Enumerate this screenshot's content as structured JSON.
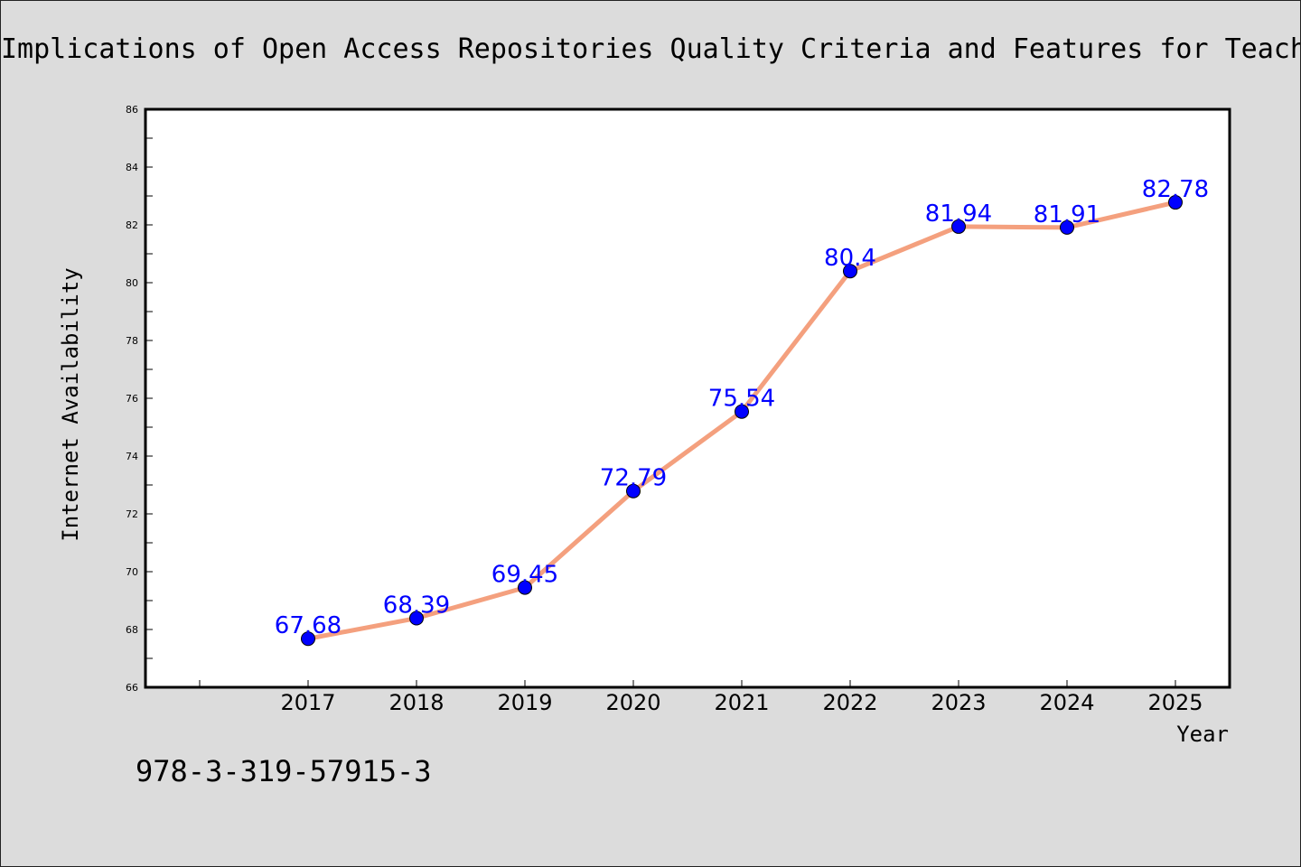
{
  "chart_data": {
    "type": "line",
    "title": "Implications of Open Access Repositories Quality Criteria and Features for Teach",
    "xlabel": "Year",
    "ylabel": "Internet Availability",
    "categories": [
      "2017",
      "2018",
      "2019",
      "2020",
      "2021",
      "2022",
      "2023",
      "2024",
      "2025"
    ],
    "series": [
      {
        "values": [
          67.68,
          68.39,
          69.45,
          72.79,
          75.54,
          80.4,
          81.94,
          81.91,
          82.78
        ],
        "data_labels": [
          "67.68",
          "68.39",
          "69.45",
          "72.79",
          "75.54",
          "80.4",
          "81.94",
          "81.91",
          "82.78"
        ]
      }
    ],
    "ylim": [
      66,
      86
    ],
    "yticks": [
      "66",
      "68",
      "70",
      "72",
      "74",
      "76",
      "78",
      "80",
      "82",
      "84",
      "86"
    ],
    "grid": false,
    "legend": "none",
    "colors": {
      "line": "#f4a07e",
      "marker": "#0000ff",
      "data_label": "#0000ff",
      "background": "#dcdcdc",
      "plot_area": "#ffffff"
    }
  },
  "annotation": "978-3-319-57915-3"
}
